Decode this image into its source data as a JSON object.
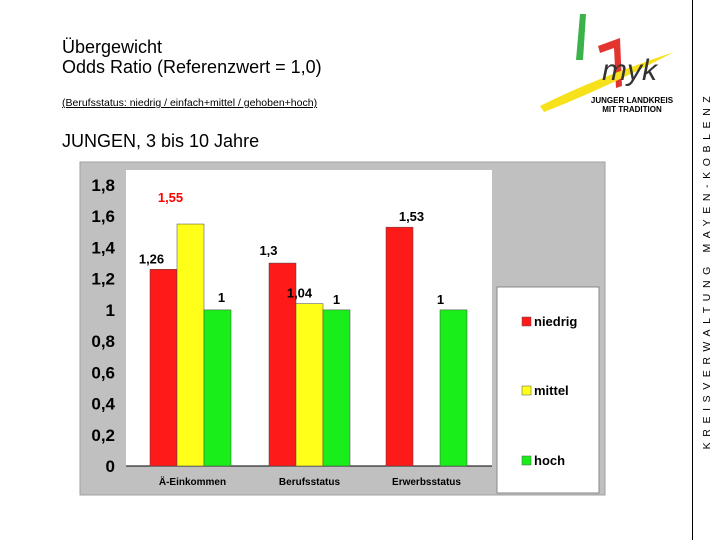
{
  "header": {
    "title_line1": "Übergewicht",
    "title_line2": "Odds Ratio (Referenzwert = 1,0)",
    "subnote": "(Berufsstatus: niedrig  /  einfach+mittel  /  gehoben+hoch)",
    "section": "JUNGEN, 3 bis 10 Jahre"
  },
  "sidebar_text": "KREISVERWALTUNG MAYEN-KOBLENZ",
  "logo": {
    "text": "myk",
    "caption_line1": "JUNGER LANDKREIS",
    "caption_line2": "MIT TRADITION"
  },
  "colors": {
    "niedrig": "#ff1a1a",
    "mittel": "#ffff1a",
    "hoch": "#1aee1a",
    "plot_bg": "#ffffff",
    "panel_bg": "#c0c0c0",
    "highlight_label": "#ff0000"
  },
  "chart_data": {
    "type": "bar",
    "title": "",
    "xlabel": "",
    "ylabel": "",
    "ylim": [
      0,
      1.8
    ],
    "ytick_labels": [
      "0",
      "0,2",
      "0,4",
      "0,6",
      "0,8",
      "1",
      "1,2",
      "1,4",
      "1,6",
      "1,8"
    ],
    "categories": [
      "Ä-Einkommen",
      "Berufsstatus",
      "Erwerbsstatus"
    ],
    "series": [
      {
        "name": "niedrig",
        "values": [
          1.26,
          1.3,
          1.53
        ],
        "labels": [
          "1,26",
          "1,3",
          "1,53"
        ]
      },
      {
        "name": "mittel",
        "values": [
          1.55,
          1.04,
          null
        ],
        "labels": [
          "1,55",
          "1,04",
          ""
        ]
      },
      {
        "name": "hoch",
        "values": [
          1,
          1,
          1
        ],
        "labels": [
          "1",
          "1",
          "1"
        ]
      }
    ],
    "highlighted_labels": [
      "mittel-0"
    ],
    "legend": "right",
    "grid": false
  }
}
